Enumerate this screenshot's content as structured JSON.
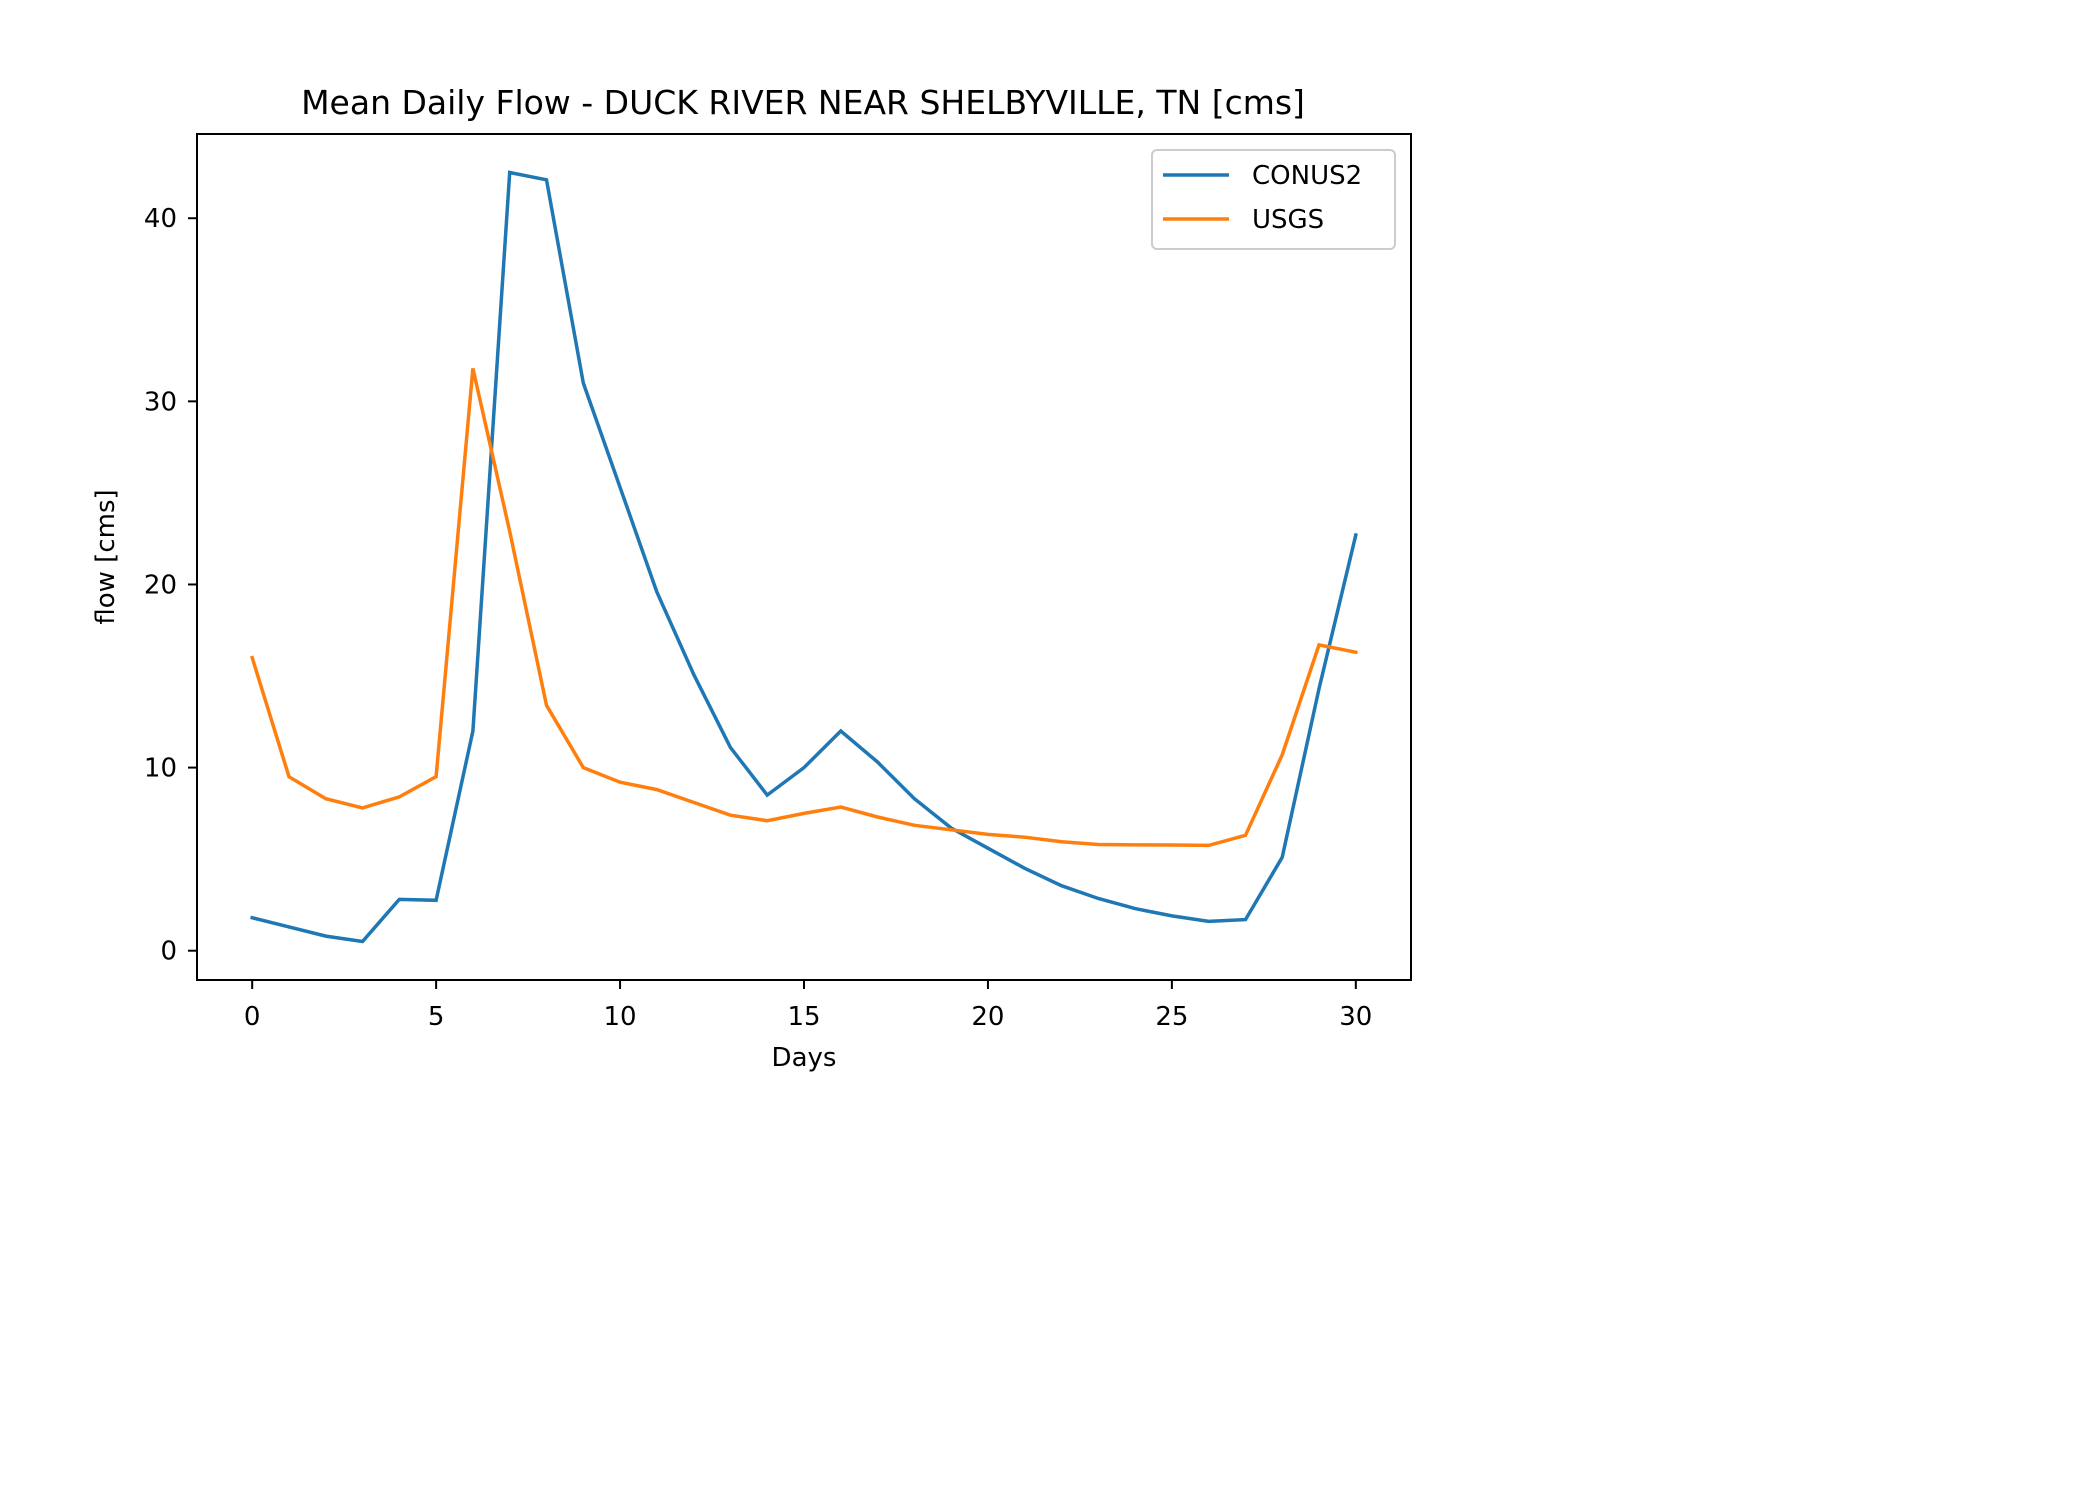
{
  "chart_data": {
    "type": "line",
    "title": "Mean Daily Flow - DUCK RIVER NEAR SHELBYVILLE, TN [cms]",
    "xlabel": "Days",
    "ylabel": "flow [cms]",
    "xlim": [
      -1.5,
      31.5
    ],
    "ylim": [
      -1.6,
      44.6
    ],
    "xticks": [
      0,
      5,
      10,
      15,
      20,
      25,
      30
    ],
    "yticks": [
      0,
      10,
      20,
      30,
      40
    ],
    "grid": false,
    "legend_position": "top-right",
    "x": [
      0,
      1,
      2,
      3,
      4,
      5,
      6,
      7,
      8,
      9,
      10,
      11,
      12,
      13,
      14,
      15,
      16,
      17,
      18,
      19,
      20,
      21,
      22,
      23,
      24,
      25,
      26,
      27,
      28,
      29,
      30
    ],
    "series": [
      {
        "name": "CONUS2",
        "color": "#1f77b4",
        "values": [
          1.8,
          1.3,
          0.8,
          0.5,
          2.8,
          2.75,
          12.0,
          42.5,
          42.1,
          31.0,
          25.3,
          19.6,
          15.1,
          11.1,
          8.5,
          10.0,
          12.0,
          10.3,
          8.3,
          6.7,
          5.6,
          4.5,
          3.55,
          2.85,
          2.3,
          1.9,
          1.6,
          1.7,
          5.1,
          14.3,
          22.7
        ]
      },
      {
        "name": "USGS",
        "color": "#ff7f0e",
        "values": [
          16.0,
          9.5,
          8.3,
          7.8,
          8.4,
          9.5,
          31.8,
          22.9,
          13.4,
          10.0,
          9.2,
          8.8,
          8.1,
          7.4,
          7.1,
          7.5,
          7.85,
          7.3,
          6.85,
          6.6,
          6.35,
          6.2,
          5.95,
          5.8,
          5.78,
          5.77,
          5.75,
          6.3,
          10.7,
          16.7,
          16.3
        ]
      }
    ]
  }
}
